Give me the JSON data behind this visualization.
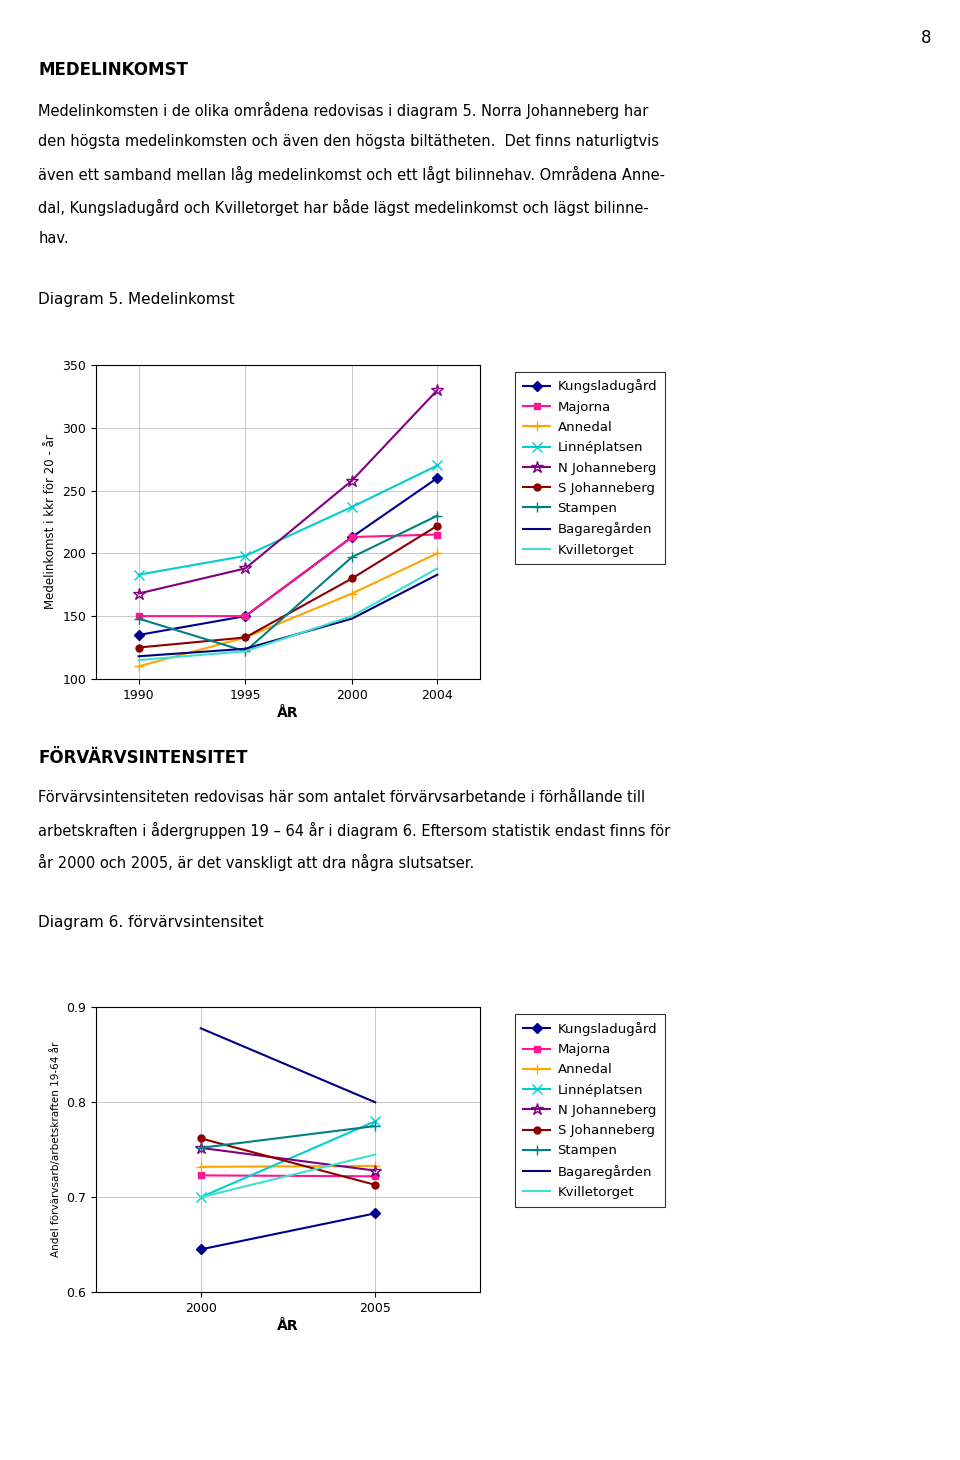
{
  "page_number": "8",
  "section1_title": "MEDELINKOMST",
  "section1_para_lines": [
    "Medelinkomsten i de olika områdena redovisas i diagram 5. Norra Johanneberg har",
    "den högsta medelinkomsten och även den högsta biltätheten.  Det finns naturligtvis",
    "även ett samband mellan låg medelinkomst och ett lågt bilinnehav. Områdena Anne-",
    "dal, Kungsladugård och Kvilletorget har både lägst medelinkomst och lägst bilinne-",
    "hav."
  ],
  "diagram5_title": "Diagram 5. Medelinkomst",
  "diagram5_ylabel": "Medelinkomst i kkr för 20 - år",
  "diagram5_xlabel": "ÅR",
  "diagram5_ylim": [
    100,
    350
  ],
  "diagram5_yticks": [
    100,
    150,
    200,
    250,
    300,
    350
  ],
  "diagram5_years": [
    1990,
    1995,
    2000,
    2004
  ],
  "diagram5_series": {
    "Kungsladugård": {
      "color": "#00008B",
      "marker": "D",
      "ms": 5,
      "values": [
        135,
        150,
        213,
        260
      ]
    },
    "Majorna": {
      "color": "#FF1493",
      "marker": "s",
      "ms": 5,
      "values": [
        150,
        150,
        213,
        215
      ]
    },
    "Annedal": {
      "color": "#FFA500",
      "marker": "+",
      "ms": 7,
      "values": [
        110,
        133,
        168,
        200
      ]
    },
    "Linnéplatsen": {
      "color": "#00CED1",
      "marker": "x",
      "ms": 7,
      "values": [
        183,
        198,
        237,
        270
      ]
    },
    "N Johanneberg": {
      "color": "#800080",
      "marker": "*",
      "ms": 9,
      "values": [
        168,
        188,
        258,
        330
      ]
    },
    "S Johanneberg": {
      "color": "#8B0000",
      "marker": "o",
      "ms": 5,
      "values": [
        125,
        133,
        180,
        222
      ]
    },
    "Stampen": {
      "color": "#008080",
      "marker": "+",
      "ms": 7,
      "values": [
        148,
        122,
        197,
        230
      ]
    },
    "Bagaregården": {
      "color": "#000080",
      "marker": null,
      "ms": 0,
      "values": [
        118,
        124,
        148,
        183
      ]
    },
    "Kvilletorget": {
      "color": "#40E0D0",
      "marker": null,
      "ms": 0,
      "values": [
        115,
        122,
        150,
        188
      ]
    }
  },
  "section2_title": "FÖRVÄRVSINTENSITET",
  "section2_para_lines": [
    "Förvärvsintensiteten redovisas här som antalet förvärvsarbetande i förhållande till",
    "arbetskraften i ådergruppen 19 – 64 år i diagram 6. Eftersom statistik endast finns för",
    "år 2000 och 2005, är det vanskligt att dra några slutsatser."
  ],
  "diagram6_title": "Diagram 6. förvärvsintensitet",
  "diagram6_ylabel": "Andel förvärvsarb/arbetskraften 19-64 år",
  "diagram6_xlabel": "ÅR",
  "diagram6_ylim": [
    0.6,
    0.9
  ],
  "diagram6_yticks": [
    0.6,
    0.7,
    0.8,
    0.9
  ],
  "diagram6_years": [
    2000,
    2005
  ],
  "diagram6_series": {
    "Kungsladugård": {
      "color": "#00008B",
      "marker": "D",
      "ms": 5,
      "values": [
        0.645,
        0.683
      ]
    },
    "Majorna": {
      "color": "#FF1493",
      "marker": "s",
      "ms": 5,
      "values": [
        0.723,
        0.722
      ]
    },
    "Annedal": {
      "color": "#FFA500",
      "marker": "+",
      "ms": 7,
      "values": [
        0.732,
        0.733
      ]
    },
    "Linnéplatsen": {
      "color": "#00CED1",
      "marker": "x",
      "ms": 7,
      "values": [
        0.7,
        0.78
      ]
    },
    "N Johanneberg": {
      "color": "#800080",
      "marker": "*",
      "ms": 9,
      "values": [
        0.752,
        0.728
      ]
    },
    "S Johanneberg": {
      "color": "#8B0000",
      "marker": "o",
      "ms": 5,
      "values": [
        0.762,
        0.713
      ]
    },
    "Stampen": {
      "color": "#008080",
      "marker": "+",
      "ms": 7,
      "values": [
        0.752,
        0.775
      ]
    },
    "Bagaregården": {
      "color": "#000080",
      "marker": null,
      "ms": 0,
      "values": [
        0.878,
        0.8
      ]
    },
    "Kvilletorget": {
      "color": "#40E0D0",
      "marker": null,
      "ms": 0,
      "values": [
        0.7,
        0.745
      ]
    }
  },
  "bg_color": "#ffffff",
  "text_color": "#000000",
  "grid_color": "#c0c0c0"
}
